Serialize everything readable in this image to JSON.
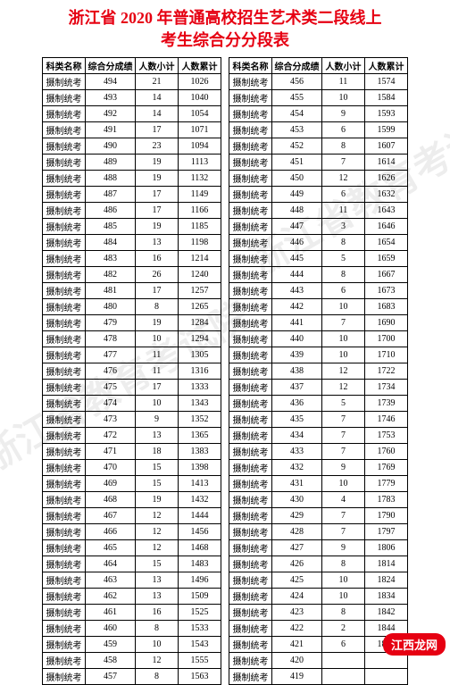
{
  "title_line1": "浙江省 2020 年普通高校招生艺术类二段线上",
  "title_line2": "考生综合分分段表",
  "columns": [
    "科类名称",
    "综合分成绩",
    "人数小计",
    "人数累计"
  ],
  "category_label": "摄制统考",
  "watermark_text": "浙江省教育考试院",
  "badge_text": "江西龙网",
  "left_rows": [
    [
      494,
      21,
      1026
    ],
    [
      493,
      14,
      1040
    ],
    [
      492,
      14,
      1054
    ],
    [
      491,
      17,
      1071
    ],
    [
      490,
      23,
      1094
    ],
    [
      489,
      19,
      1113
    ],
    [
      488,
      19,
      1132
    ],
    [
      487,
      17,
      1149
    ],
    [
      486,
      17,
      1166
    ],
    [
      485,
      19,
      1185
    ],
    [
      484,
      13,
      1198
    ],
    [
      483,
      16,
      1214
    ],
    [
      482,
      26,
      1240
    ],
    [
      481,
      17,
      1257
    ],
    [
      480,
      8,
      1265
    ],
    [
      479,
      19,
      1284
    ],
    [
      478,
      10,
      1294
    ],
    [
      477,
      11,
      1305
    ],
    [
      476,
      11,
      1316
    ],
    [
      475,
      17,
      1333
    ],
    [
      474,
      10,
      1343
    ],
    [
      473,
      9,
      1352
    ],
    [
      472,
      13,
      1365
    ],
    [
      471,
      18,
      1383
    ],
    [
      470,
      15,
      1398
    ],
    [
      469,
      15,
      1413
    ],
    [
      468,
      19,
      1432
    ],
    [
      467,
      12,
      1444
    ],
    [
      466,
      12,
      1456
    ],
    [
      465,
      12,
      1468
    ],
    [
      464,
      15,
      1483
    ],
    [
      463,
      13,
      1496
    ],
    [
      462,
      13,
      1509
    ],
    [
      461,
      16,
      1525
    ],
    [
      460,
      8,
      1533
    ],
    [
      459,
      10,
      1543
    ],
    [
      458,
      12,
      1555
    ],
    [
      457,
      8,
      1563
    ]
  ],
  "right_rows": [
    [
      456,
      11,
      1574
    ],
    [
      455,
      10,
      1584
    ],
    [
      454,
      9,
      1593
    ],
    [
      453,
      6,
      1599
    ],
    [
      452,
      8,
      1607
    ],
    [
      451,
      7,
      1614
    ],
    [
      450,
      12,
      1626
    ],
    [
      449,
      6,
      1632
    ],
    [
      448,
      11,
      1643
    ],
    [
      447,
      3,
      1646
    ],
    [
      446,
      8,
      1654
    ],
    [
      445,
      5,
      1659
    ],
    [
      444,
      8,
      1667
    ],
    [
      443,
      6,
      1673
    ],
    [
      442,
      10,
      1683
    ],
    [
      441,
      7,
      1690
    ],
    [
      440,
      10,
      1700
    ],
    [
      439,
      10,
      1710
    ],
    [
      438,
      12,
      1722
    ],
    [
      437,
      12,
      1734
    ],
    [
      436,
      5,
      1739
    ],
    [
      435,
      7,
      1746
    ],
    [
      434,
      7,
      1753
    ],
    [
      433,
      7,
      1760
    ],
    [
      432,
      9,
      1769
    ],
    [
      431,
      10,
      1779
    ],
    [
      430,
      4,
      1783
    ],
    [
      429,
      7,
      1790
    ],
    [
      428,
      7,
      1797
    ],
    [
      427,
      9,
      1806
    ],
    [
      426,
      8,
      1814
    ],
    [
      425,
      10,
      1824
    ],
    [
      424,
      10,
      1834
    ],
    [
      423,
      8,
      1842
    ],
    [
      422,
      2,
      1844
    ],
    [
      421,
      6,
      1850
    ],
    [
      420,
      "",
      ""
    ],
    [
      419,
      "",
      ""
    ]
  ]
}
